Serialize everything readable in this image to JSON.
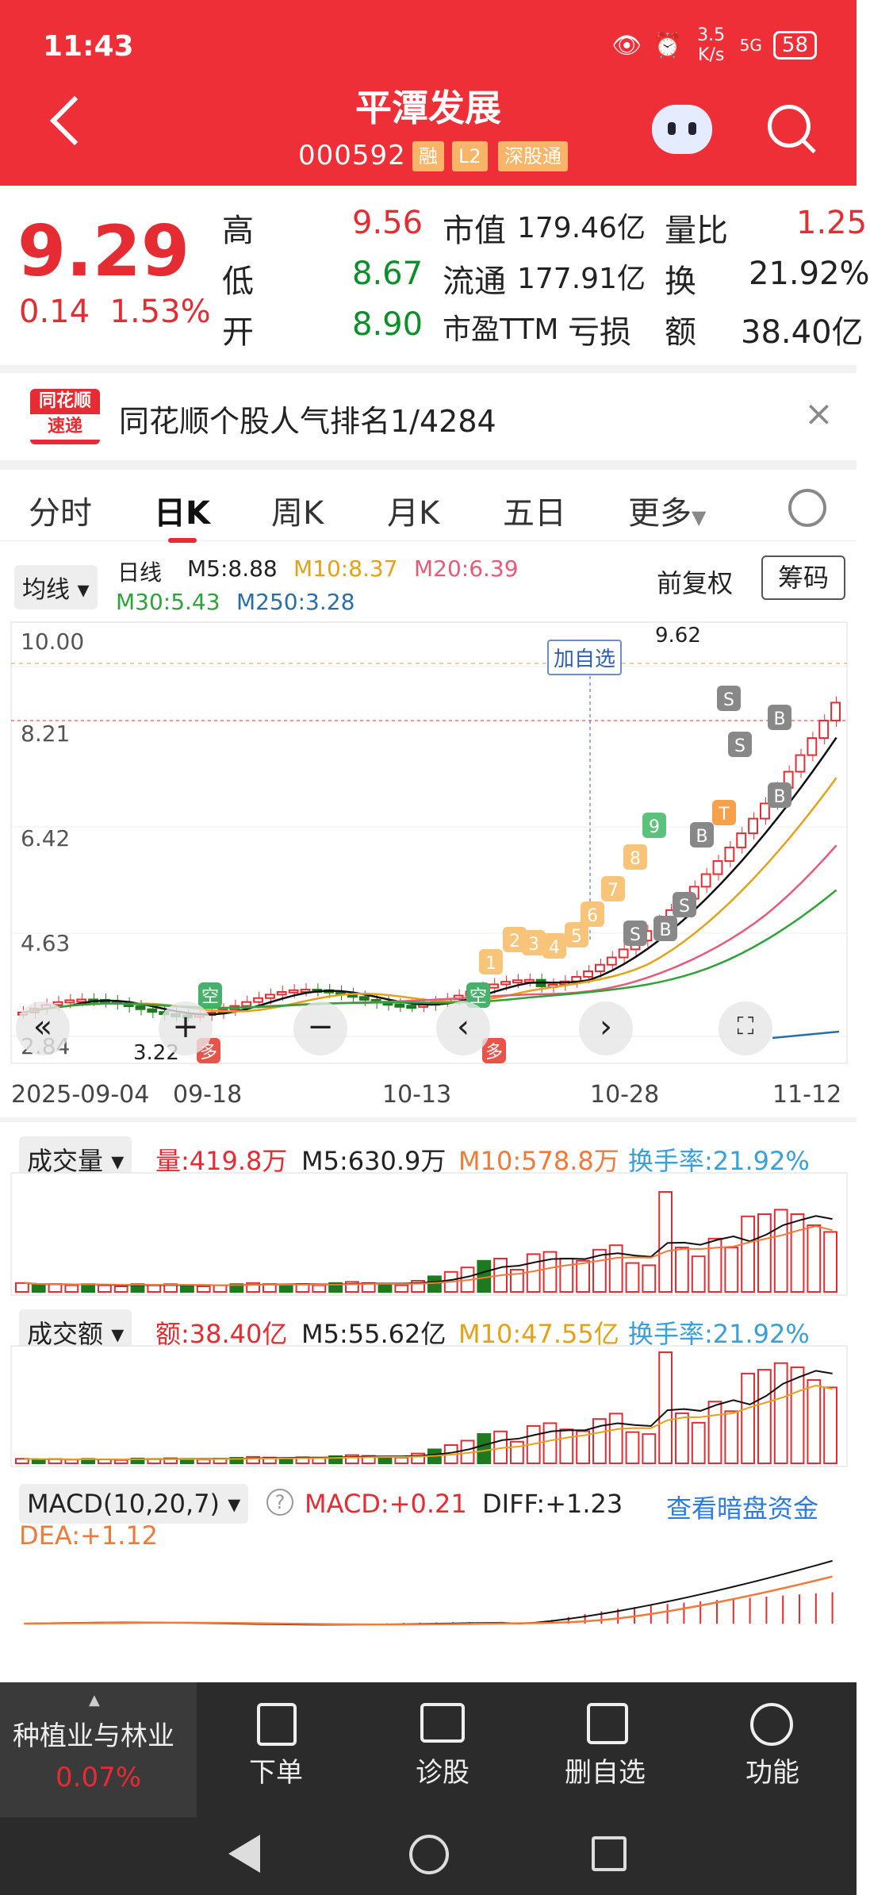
{
  "status_bar": {
    "time": "11:43",
    "net_speed": "3.5 K/s",
    "battery": "58",
    "signal": "5G"
  },
  "header": {
    "title": "平潭发展",
    "code": "000592",
    "tags": [
      "融",
      "L2",
      "深股通"
    ]
  },
  "quote": {
    "price": "9.29",
    "change": "0.14",
    "change_pct": "1.53%",
    "rows": [
      [
        {
          "label": "高",
          "value": "9.56",
          "color": "red"
        },
        {
          "label": "市值",
          "value": "179.46亿",
          "color": "dark"
        },
        {
          "label": "量比",
          "value": "1.25",
          "color": "red"
        }
      ],
      [
        {
          "label": "低",
          "value": "8.67",
          "color": "green"
        },
        {
          "label": "流通",
          "value": "177.91亿",
          "color": "dark"
        },
        {
          "label": "换",
          "value": "21.92%",
          "color": "dark"
        }
      ],
      [
        {
          "label": "开",
          "value": "8.90",
          "color": "green"
        },
        {
          "label": "市盈TTM",
          "value": "亏损",
          "color": "dark"
        },
        {
          "label": "额",
          "value": "38.40亿",
          "color": "dark"
        }
      ]
    ]
  },
  "banner": {
    "logo_top": "同花顺",
    "logo_bottom": "速递",
    "text": "同花顺个股人气排名1/4284"
  },
  "tabs": [
    "分时",
    "日K",
    "周K",
    "月K",
    "五日",
    "更多"
  ],
  "active_tab": "日K",
  "ma_bar": {
    "dropdown": "均线",
    "period": "日线",
    "m5": "M5:8.88",
    "m10": "M10:8.37",
    "m20": "M20:6.39",
    "m30": "M30:5.43",
    "m250": "M250:3.28",
    "adjust": "前复权",
    "chips": "筹码"
  },
  "kline": {
    "y_ticks": [
      "10.00",
      "8.21",
      "6.42",
      "4.63",
      "2.84"
    ],
    "x_ticks": [
      "2025-09-04",
      "09-18",
      "10-13",
      "10-28",
      "11-12"
    ],
    "high_mark": "9.62",
    "low_mark": "3.22",
    "add_watch": "加自选",
    "signal_labels": [
      "1",
      "2",
      "3",
      "4",
      "5",
      "6",
      "7",
      "8",
      "9",
      "S",
      "S",
      "S",
      "S",
      "B",
      "B",
      "B",
      "B",
      "T",
      "空",
      "空",
      "多",
      "多"
    ]
  },
  "chart_data": [
    {
      "type": "bar",
      "title": "成交量",
      "series": [
        {
          "name": "量",
          "values": [
            8,
            6,
            7,
            6,
            7,
            6,
            5,
            7,
            6,
            7,
            6,
            5,
            6,
            7,
            8,
            7,
            6,
            7,
            6,
            8,
            9,
            8,
            7,
            6,
            10,
            14,
            18,
            22,
            28,
            30,
            20,
            34,
            36,
            30,
            28,
            38,
            42,
            26,
            24,
            90,
            40,
            32,
            48,
            40,
            68,
            70,
            74,
            70,
            60,
            54
          ]
        }
      ],
      "legend": [
        "量:419.8万",
        "M5:630.9万",
        "M10:578.8万",
        "换手率:21.92%"
      ]
    },
    {
      "type": "bar",
      "title": "成交额",
      "legend": [
        "额:38.40亿",
        "M5:55.62亿",
        "M10:47.55亿",
        "换手率:21.92%"
      ]
    },
    {
      "type": "line",
      "title": "MACD(10,20,7)",
      "legend": [
        "MACD:+0.21",
        "DIFF:+1.23",
        "DEA:+1.12"
      ]
    }
  ],
  "macd_link": "查看暗盘资金",
  "bottom_nav": {
    "sector": "种植业与林业",
    "sector_chg": "0.07%",
    "items": [
      "下单",
      "诊股",
      "删自选",
      "功能"
    ]
  }
}
